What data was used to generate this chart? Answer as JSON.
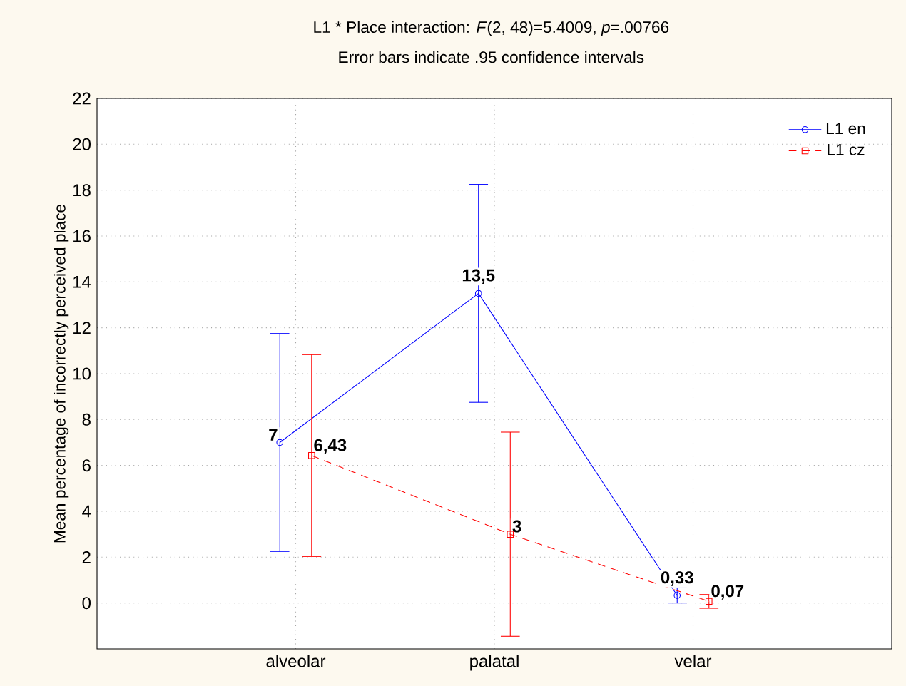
{
  "chart_data": {
    "type": "line",
    "title": "L1 * Place interaction: *F*(2, 48)=5.4009, *p*=.00766",
    "subtitle": "Error bars indicate .95 confidence intervals",
    "ylabel": "Mean percentage of incorrectly perceived place",
    "categories": [
      "alveolar",
      "palatal",
      "velar"
    ],
    "series": [
      {
        "name": "L1 en",
        "color": "#0000ff",
        "marker": "circle",
        "line_style": "solid",
        "values": [
          7,
          13.5,
          0.33
        ],
        "errors": [
          4.75,
          4.75,
          0.33
        ],
        "value_labels": [
          "7",
          "13,5",
          "0,33"
        ]
      },
      {
        "name": "L1 cz",
        "color": "#ff0000",
        "marker": "square",
        "line_style": "dashed",
        "values": [
          6.43,
          3,
          0.07
        ],
        "errors": [
          4.4,
          4.45,
          0.3
        ],
        "value_labels": [
          "6,43",
          "3",
          "0,07"
        ]
      }
    ],
    "ylim": [
      -2,
      22
    ],
    "yticks": [
      0,
      2,
      4,
      6,
      8,
      10,
      12,
      14,
      16,
      18,
      20,
      22
    ],
    "grid": true,
    "legend": "top right"
  }
}
